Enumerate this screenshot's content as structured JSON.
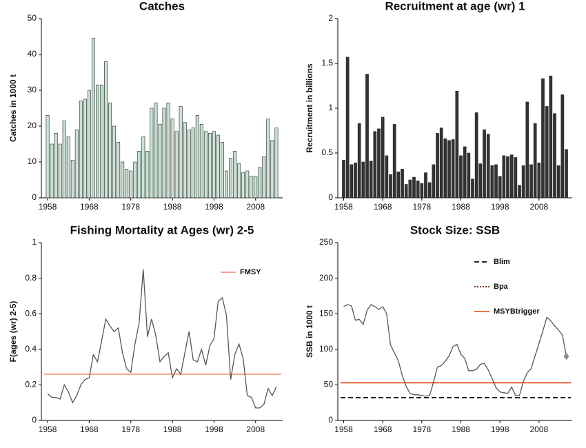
{
  "chart_data": [
    {
      "type": "bar",
      "title": "Catches",
      "y_label": "Catches in 1000 t",
      "color": "#c8e2d4",
      "x": [
        1958,
        1959,
        1960,
        1961,
        1962,
        1963,
        1964,
        1965,
        1966,
        1967,
        1968,
        1969,
        1970,
        1971,
        1972,
        1973,
        1974,
        1975,
        1976,
        1977,
        1978,
        1979,
        1980,
        1981,
        1982,
        1983,
        1984,
        1985,
        1986,
        1987,
        1988,
        1989,
        1990,
        1991,
        1992,
        1993,
        1994,
        1995,
        1996,
        1997,
        1998,
        1999,
        2000,
        2001,
        2002,
        2003,
        2004,
        2005,
        2006,
        2007,
        2008,
        2009,
        2010,
        2011,
        2012,
        2013
      ],
      "values": [
        23,
        15,
        18,
        15,
        21.5,
        17,
        10.5,
        19,
        27,
        27.5,
        30,
        44.5,
        31.5,
        31.5,
        38,
        26.5,
        20,
        15.5,
        10,
        8,
        7.5,
        10,
        13,
        17,
        13,
        25,
        26.5,
        20.5,
        25,
        26.5,
        22,
        18.5,
        25.5,
        21,
        19,
        19.5,
        23,
        20.5,
        18.5,
        18,
        18.5,
        17.5,
        15.5,
        7.5,
        11,
        13,
        9.5,
        7,
        7.5,
        6,
        6,
        8.5,
        11.5,
        22,
        16,
        19.5
      ],
      "xlim": [
        1956.5,
        2014.5
      ],
      "xticks": [
        1958,
        1968,
        1978,
        1988,
        1998,
        2008
      ],
      "ylim": [
        0,
        50
      ],
      "yticks": [
        0,
        10,
        20,
        30,
        40,
        50
      ]
    },
    {
      "type": "bar",
      "title": "Recruitment at age (wr) 1",
      "y_label": "Recruitment in billions",
      "color": "#333333",
      "x": [
        1958,
        1959,
        1960,
        1961,
        1962,
        1963,
        1964,
        1965,
        1966,
        1967,
        1968,
        1969,
        1970,
        1971,
        1972,
        1973,
        1974,
        1975,
        1976,
        1977,
        1978,
        1979,
        1980,
        1981,
        1982,
        1983,
        1984,
        1985,
        1986,
        1987,
        1988,
        1989,
        1990,
        1991,
        1992,
        1993,
        1994,
        1995,
        1996,
        1997,
        1998,
        1999,
        2000,
        2001,
        2002,
        2003,
        2004,
        2005,
        2006,
        2007,
        2008,
        2009,
        2010,
        2011,
        2012,
        2013,
        2014,
        2015
      ],
      "values": [
        0.42,
        1.57,
        0.37,
        0.39,
        0.83,
        0.4,
        1.38,
        0.41,
        0.74,
        0.77,
        0.9,
        0.47,
        0.26,
        0.82,
        0.29,
        0.32,
        0.15,
        0.2,
        0.23,
        0.19,
        0.16,
        0.28,
        0.17,
        0.37,
        0.72,
        0.78,
        0.66,
        0.64,
        0.65,
        1.19,
        0.47,
        0.57,
        0.5,
        0.21,
        0.95,
        0.38,
        0.76,
        0.71,
        0.36,
        0.37,
        0.24,
        0.47,
        0.46,
        0.48,
        0.45,
        0.14,
        0.36,
        1.07,
        0.37,
        0.83,
        0.39,
        1.33,
        1.02,
        1.36,
        0.94,
        0.36,
        1.15,
        0.54
      ],
      "xlim": [
        1956.5,
        2016.5
      ],
      "xticks": [
        1958,
        1968,
        1978,
        1988,
        1998,
        2008
      ],
      "ylim": [
        0,
        2
      ],
      "yticks": [
        0,
        0.5,
        1,
        1.5,
        2
      ]
    },
    {
      "type": "line",
      "title": "Fishing Mortality at Ages (wr) 2-5",
      "y_label": "F(ages (wr) 2-5)",
      "color": "#555555",
      "x": [
        1958,
        1959,
        1960,
        1961,
        1962,
        1963,
        1964,
        1965,
        1966,
        1967,
        1968,
        1969,
        1970,
        1971,
        1972,
        1973,
        1974,
        1975,
        1976,
        1977,
        1978,
        1979,
        1980,
        1981,
        1982,
        1983,
        1984,
        1985,
        1986,
        1987,
        1988,
        1989,
        1990,
        1991,
        1992,
        1993,
        1994,
        1995,
        1996,
        1997,
        1998,
        1999,
        2000,
        2001,
        2002,
        2003,
        2004,
        2005,
        2006,
        2007,
        2008,
        2009,
        2010,
        2011,
        2012,
        2013
      ],
      "values": [
        0.15,
        0.13,
        0.13,
        0.12,
        0.2,
        0.16,
        0.1,
        0.14,
        0.2,
        0.23,
        0.24,
        0.37,
        0.33,
        0.45,
        0.57,
        0.53,
        0.5,
        0.52,
        0.38,
        0.29,
        0.27,
        0.43,
        0.55,
        0.85,
        0.47,
        0.57,
        0.48,
        0.33,
        0.36,
        0.38,
        0.24,
        0.29,
        0.26,
        0.38,
        0.5,
        0.34,
        0.33,
        0.4,
        0.31,
        0.42,
        0.46,
        0.67,
        0.69,
        0.59,
        0.23,
        0.37,
        0.43,
        0.35,
        0.14,
        0.13,
        0.07,
        0.07,
        0.09,
        0.18,
        0.14,
        0.19
      ],
      "reference_lines": [
        {
          "name": "FMSY",
          "value": 0.26,
          "color": "#f4a58a",
          "dash": "solid"
        }
      ],
      "xlim": [
        1956.5,
        2014.5
      ],
      "xticks": [
        1958,
        1968,
        1978,
        1988,
        1998,
        2008
      ],
      "ylim": [
        0,
        1
      ],
      "yticks": [
        0,
        0.2,
        0.4,
        0.6,
        0.8,
        1
      ]
    },
    {
      "type": "line",
      "title": "Stock Size: SSB",
      "y_label": "SSB in 1000 t",
      "color": "#555555",
      "last_marker": true,
      "x": [
        1958,
        1959,
        1960,
        1961,
        1962,
        1963,
        1964,
        1965,
        1966,
        1967,
        1968,
        1969,
        1970,
        1971,
        1972,
        1973,
        1974,
        1975,
        1976,
        1977,
        1978,
        1979,
        1980,
        1981,
        1982,
        1983,
        1984,
        1985,
        1986,
        1987,
        1988,
        1989,
        1990,
        1991,
        1992,
        1993,
        1994,
        1995,
        1996,
        1997,
        1998,
        1999,
        2000,
        2001,
        2002,
        2003,
        2004,
        2005,
        2006,
        2007,
        2008,
        2009,
        2010,
        2011,
        2012,
        2013,
        2014,
        2015
      ],
      "values": [
        160,
        163,
        161,
        141,
        142,
        135,
        155,
        163,
        160,
        156,
        160,
        150,
        106,
        95,
        84,
        63,
        48,
        38,
        36,
        36,
        35,
        34,
        35,
        54,
        75,
        77,
        83,
        91,
        104,
        107,
        93,
        87,
        70,
        70,
        72,
        79,
        80,
        71,
        59,
        46,
        40,
        39,
        38,
        47,
        35,
        35,
        55,
        67,
        73,
        91,
        108,
        126,
        145,
        140,
        133,
        127,
        120,
        90
      ],
      "reference_lines": [
        {
          "name": "Blim",
          "value": 32,
          "color": "#222222",
          "dash": "dashed"
        },
        {
          "name": "Bpa",
          "value": 53,
          "color": "#8b3a1a",
          "dash": "dotted"
        },
        {
          "name": "MSYBtrigger",
          "value": 53,
          "color": "#f07040",
          "dash": "solid"
        }
      ],
      "xlim": [
        1956.5,
        2016.5
      ],
      "xticks": [
        1958,
        1968,
        1978,
        1988,
        1998,
        2008
      ],
      "ylim": [
        0,
        250
      ],
      "yticks": [
        0,
        50,
        100,
        150,
        200,
        250
      ]
    }
  ]
}
